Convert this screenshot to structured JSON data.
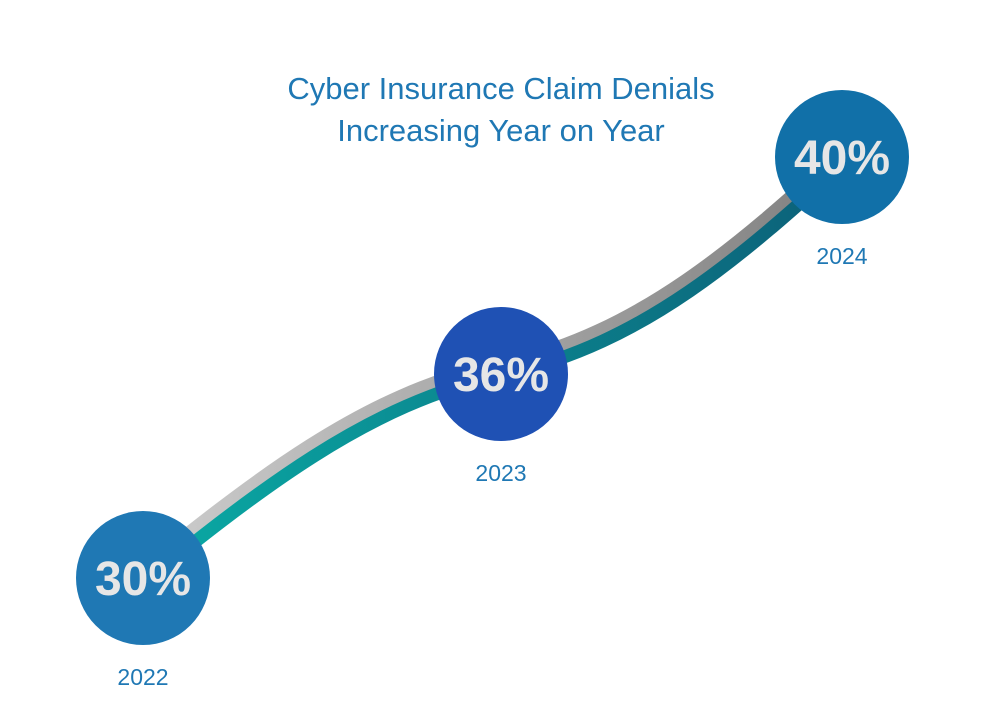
{
  "chart_data": {
    "type": "line",
    "title_lines": [
      "Cyber Insurance Claim Denials",
      "Increasing Year on Year"
    ],
    "categories": [
      "2022",
      "2023",
      "2024"
    ],
    "values": [
      30,
      36,
      40
    ],
    "value_labels": [
      "30%",
      "36%",
      "40%"
    ],
    "grid": false,
    "colors": {
      "title": "#1f78b4",
      "year_label": "#1f78b4",
      "circle_2022": "#1f78b4",
      "circle_2023": "#1f51b4",
      "circle_2024": "#1170a8",
      "value_text": "#e6e6e6",
      "line_start": "#0aada6",
      "line_end": "#0c5f78",
      "line_shadow": "#9a9a9a"
    }
  }
}
